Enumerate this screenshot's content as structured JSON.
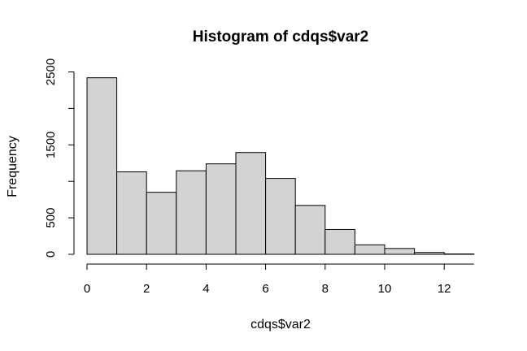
{
  "chart_data": {
    "type": "bar",
    "title": "Histogram of cdqs$var2",
    "xlabel": "cdqs$var2",
    "ylabel": "Frequency",
    "bin_edges": [
      0,
      1,
      2,
      3,
      4,
      5,
      6,
      7,
      8,
      9,
      10,
      11,
      12,
      13
    ],
    "values": [
      2420,
      1130,
      850,
      1145,
      1240,
      1395,
      1040,
      670,
      340,
      130,
      80,
      25,
      5
    ],
    "xlim": [
      0,
      13
    ],
    "ylim": [
      0,
      2500
    ],
    "x_ticks": [
      0,
      2,
      4,
      6,
      8,
      10,
      12
    ],
    "x_tick_labels": [
      "0",
      "2",
      "4",
      "6",
      "8",
      "10",
      "12"
    ],
    "y_ticks": [
      0,
      500,
      1500,
      2500
    ],
    "y_tick_labels": [
      "0",
      "500",
      "1500",
      "2500"
    ],
    "grid": false,
    "bar_color": "#d3d3d3",
    "edge_color": "#000000"
  }
}
